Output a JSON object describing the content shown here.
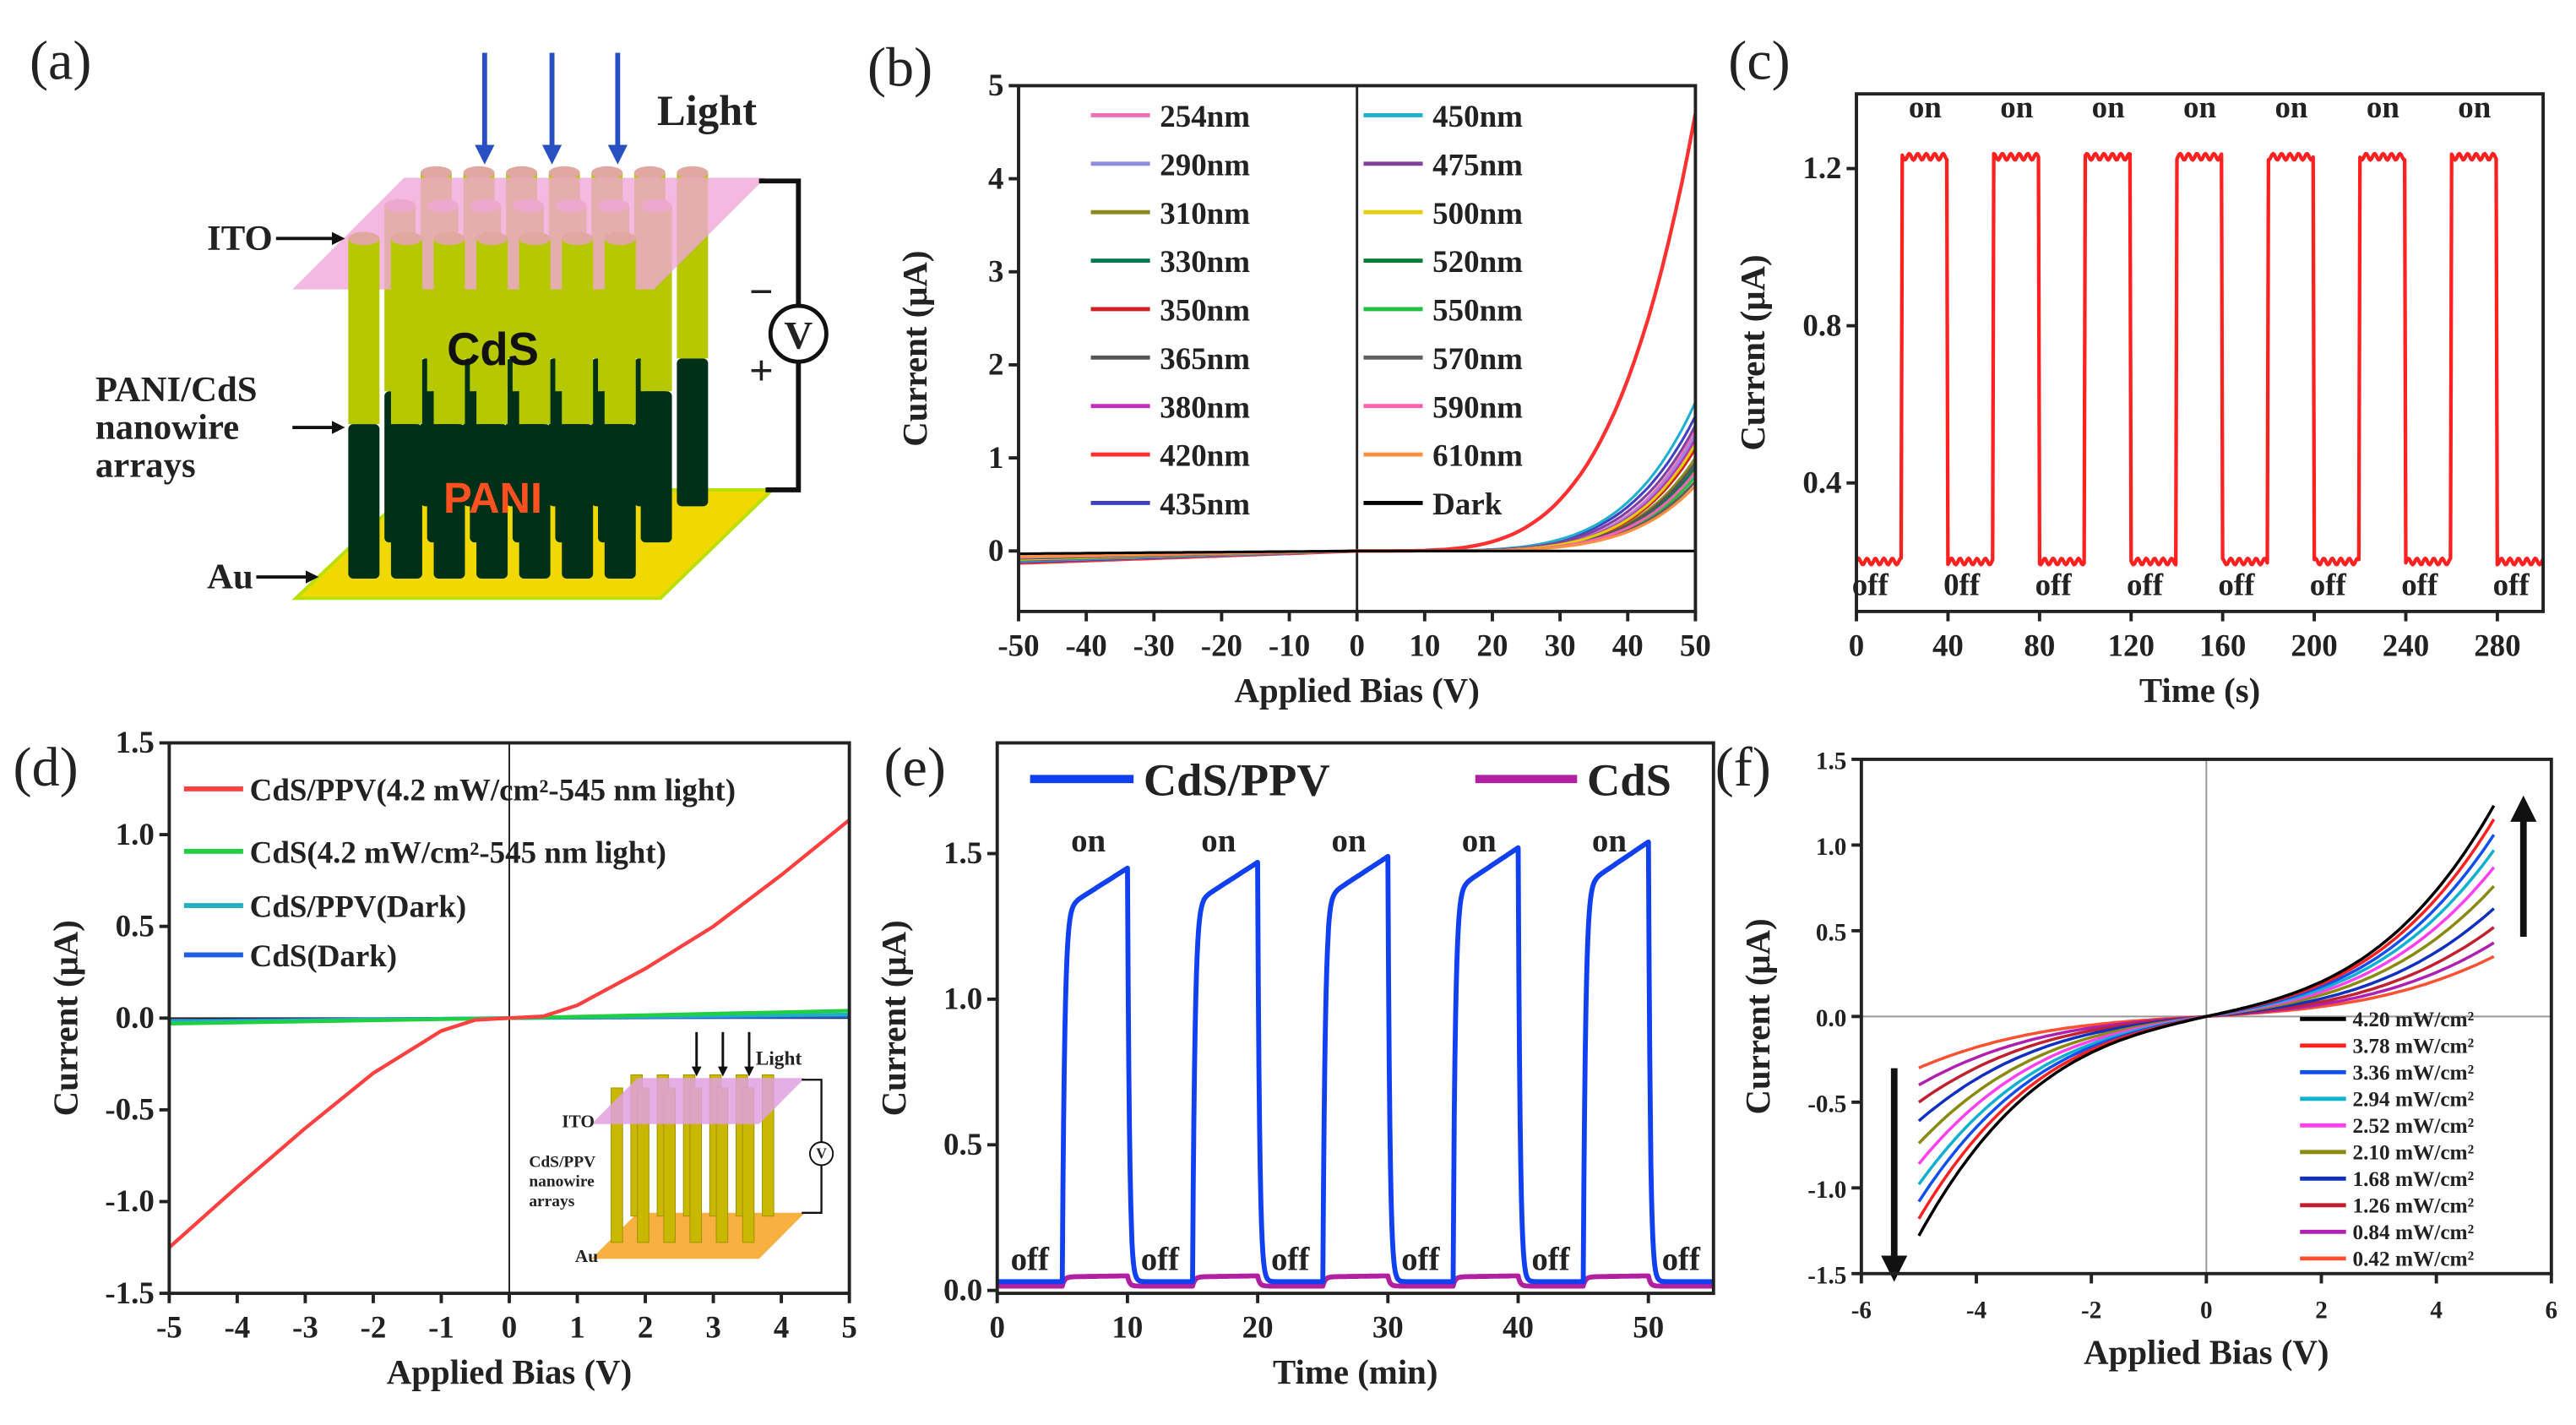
{
  "figure": {
    "panel_labels": [
      "(a)",
      "(b)",
      "(c)",
      "(d)",
      "(e)",
      "(f)"
    ]
  },
  "schematic_a": {
    "light": "Light",
    "ito": "ITO",
    "cds": "CdS",
    "pani": "PANI",
    "array_label": [
      "PANI/CdS",
      "nanowire",
      "arrays"
    ],
    "au": "Au",
    "voltmeter": "V",
    "minus": "−",
    "plus": "+",
    "colors": {
      "ito": "#f0a8d8",
      "cds": "#b5c800",
      "pani": "#003018",
      "au": "#f0d800",
      "arrow": "#2850c0"
    }
  },
  "inset_d": {
    "light": "Light",
    "ito": "ITO",
    "array_label": [
      "CdS/PPV",
      "nanowire",
      "arrays"
    ],
    "au": "Au",
    "voltmeter": "V"
  },
  "chart_data": [
    {
      "panel": "b",
      "type": "line",
      "xlabel": "Applied Bias (V)",
      "ylabel": "Current (μA)",
      "xlim": [
        -50,
        50
      ],
      "ylim": [
        -0.65,
        5
      ],
      "xticks": [
        -50,
        -40,
        -30,
        -20,
        -10,
        0,
        10,
        20,
        30,
        40,
        50
      ],
      "yticks": [
        0,
        1,
        2,
        3,
        4,
        5
      ],
      "legend_placement": "top-left, two columns",
      "series": [
        {
          "name": "254nm",
          "color": "#f070b8",
          "i_at_50V": 1.3,
          "i_at_minus50V": -0.1,
          "onset_power": 5.5
        },
        {
          "name": "290nm",
          "color": "#8c8ce0",
          "i_at_50V": 1.25,
          "i_at_minus50V": -0.1,
          "onset_power": 5.5
        },
        {
          "name": "310nm",
          "color": "#8a8a20",
          "i_at_50V": 1.0,
          "i_at_minus50V": -0.09,
          "onset_power": 5.5
        },
        {
          "name": "330nm",
          "color": "#007a50",
          "i_at_50V": 0.9,
          "i_at_minus50V": -0.08,
          "onset_power": 5.5
        },
        {
          "name": "350nm",
          "color": "#d02020",
          "i_at_50V": 1.1,
          "i_at_minus50V": -0.1,
          "onset_power": 5.5
        },
        {
          "name": "365nm",
          "color": "#555555",
          "i_at_50V": 0.95,
          "i_at_minus50V": -0.09,
          "onset_power": 5.5
        },
        {
          "name": "380nm",
          "color": "#c030c0",
          "i_at_50V": 1.2,
          "i_at_minus50V": -0.1,
          "onset_power": 5.5
        },
        {
          "name": "420nm",
          "color": "#ff3030",
          "i_at_50V": 4.7,
          "i_at_minus50V": -0.13,
          "onset_power": 4.2
        },
        {
          "name": "435nm",
          "color": "#4040c0",
          "i_at_50V": 1.45,
          "i_at_minus50V": -0.12,
          "onset_power": 5.0
        },
        {
          "name": "450nm",
          "color": "#20b0d0",
          "i_at_50V": 1.6,
          "i_at_minus50V": -0.11,
          "onset_power": 5.0
        },
        {
          "name": "475nm",
          "color": "#8040a0",
          "i_at_50V": 1.35,
          "i_at_minus50V": -0.1,
          "onset_power": 5.2
        },
        {
          "name": "500nm",
          "color": "#e0d000",
          "i_at_50V": 1.15,
          "i_at_minus50V": -0.09,
          "onset_power": 5.5
        },
        {
          "name": "520nm",
          "color": "#008030",
          "i_at_50V": 0.85,
          "i_at_minus50V": -0.08,
          "onset_power": 5.5
        },
        {
          "name": "550nm",
          "color": "#20c040",
          "i_at_50V": 0.8,
          "i_at_minus50V": -0.07,
          "onset_power": 5.5
        },
        {
          "name": "570nm",
          "color": "#606060",
          "i_at_50V": 0.75,
          "i_at_minus50V": -0.07,
          "onset_power": 5.5
        },
        {
          "name": "590nm",
          "color": "#ff60b0",
          "i_at_50V": 0.85,
          "i_at_minus50V": -0.07,
          "onset_power": 5.5
        },
        {
          "name": "610nm",
          "color": "#ff9040",
          "i_at_50V": 0.7,
          "i_at_minus50V": -0.06,
          "onset_power": 5.5
        },
        {
          "name": "Dark",
          "color": "#000000",
          "i_at_50V": 0.0,
          "i_at_minus50V": -0.03,
          "onset_power": 1
        }
      ]
    },
    {
      "panel": "c",
      "type": "line",
      "xlabel": "Time (s)",
      "ylabel": "Current (μA)",
      "xlim": [
        0,
        300
      ],
      "ylim": [
        0.073,
        1.39
      ],
      "xticks": [
        0,
        40,
        80,
        120,
        160,
        200,
        240,
        280
      ],
      "yticks": [
        0.4,
        0.8,
        1.2
      ],
      "series": [
        {
          "name": "photoresponse",
          "color": "#ff2020",
          "on_level": 1.23,
          "off_level": 0.2,
          "on_intervals": [
            [
              20,
              40
            ],
            [
              60,
              80
            ],
            [
              100,
              120
            ],
            [
              140,
              160
            ],
            [
              180,
              200
            ],
            [
              220,
              240
            ],
            [
              260,
              280
            ]
          ]
        }
      ],
      "annotations": {
        "on_labels": [
          "on",
          "on",
          "on",
          "on",
          "on",
          "on",
          "on"
        ],
        "off_labels": [
          "off",
          "0ff",
          "off",
          "off",
          "off",
          "off",
          "off",
          "off"
        ],
        "off_positions": [
          6,
          46,
          86,
          126,
          166,
          206,
          246,
          286
        ]
      }
    },
    {
      "panel": "d",
      "type": "line",
      "xlabel": "Applied Bias (V)",
      "ylabel": "Current (μA)",
      "xlim": [
        -5,
        5
      ],
      "ylim": [
        -1.5,
        1.5
      ],
      "xticks": [
        -5,
        -4,
        -3,
        -2,
        -1,
        0,
        1,
        2,
        3,
        4,
        5
      ],
      "yticks": [
        -1.5,
        -1.0,
        -0.5,
        0.0,
        0.5,
        1.0,
        1.5
      ],
      "legend_placement": "top-left",
      "series": [
        {
          "name": "CdS/PPV(4.2 mW/cm²-545 nm light)",
          "color": "#ff4040",
          "x": [
            -5,
            -4,
            -3,
            -2,
            -1,
            -0.5,
            0,
            0.5,
            1,
            2,
            3,
            4,
            5
          ],
          "y": [
            -1.25,
            -0.92,
            -0.6,
            -0.3,
            -0.07,
            -0.01,
            0,
            0.01,
            0.07,
            0.27,
            0.5,
            0.78,
            1.08
          ]
        },
        {
          "name": "CdS(4.2 mW/cm²-545 nm light)",
          "color": "#20d040",
          "x": [
            -5,
            0,
            5
          ],
          "y": [
            -0.03,
            0,
            0.04
          ]
        },
        {
          "name": "CdS/PPV(Dark)",
          "color": "#20b0c0",
          "x": [
            -5,
            0,
            5
          ],
          "y": [
            -0.02,
            0,
            0.02
          ]
        },
        {
          "name": "CdS(Dark)",
          "color": "#2060e0",
          "x": [
            -5,
            0,
            5
          ],
          "y": [
            -0.015,
            0,
            0.01
          ]
        }
      ]
    },
    {
      "panel": "e",
      "type": "line",
      "xlabel": "Time (min)",
      "ylabel": "Current (μA)",
      "xlim": [
        0,
        55
      ],
      "ylim": [
        -0.01,
        1.88
      ],
      "xticks": [
        0,
        10,
        20,
        30,
        40,
        50
      ],
      "yticks": [
        0.0,
        0.5,
        1.0,
        1.5
      ],
      "legend_placement": "top",
      "series": [
        {
          "name": "CdS/PPV",
          "color": "#1040f0",
          "off_level": 0.03,
          "on_intervals": [
            [
              5,
              10
            ],
            [
              15,
              20
            ],
            [
              25,
              30
            ],
            [
              35,
              40
            ],
            [
              45,
              50
            ]
          ],
          "peaks": [
            1.45,
            1.47,
            1.49,
            1.52,
            1.54
          ]
        },
        {
          "name": "CdS",
          "color": "#b020a0",
          "off_level": 0.015,
          "on_intervals": [
            [
              5,
              10
            ],
            [
              15,
              20
            ],
            [
              25,
              30
            ],
            [
              35,
              40
            ],
            [
              45,
              50
            ]
          ],
          "peaks": [
            0.05,
            0.05,
            0.05,
            0.05,
            0.05
          ]
        }
      ],
      "annotations": {
        "on_labels": [
          "on",
          "on",
          "on",
          "on",
          "on"
        ],
        "off_labels": [
          "off",
          "off",
          "off",
          "off",
          "off",
          "off"
        ],
        "off_positions": [
          2.5,
          12.5,
          22.5,
          32.5,
          42.5,
          52.5
        ],
        "label_color": "#ff2020"
      }
    },
    {
      "panel": "f",
      "type": "line",
      "xlabel": "Applied Bias (V)",
      "ylabel": "Current (μA)",
      "xlim": [
        -6,
        6
      ],
      "ylim": [
        -1.5,
        1.5
      ],
      "xticks": [
        -6,
        -4,
        -2,
        0,
        2,
        4,
        6
      ],
      "yticks": [
        -1.5,
        -1.0,
        -0.5,
        0.0,
        0.5,
        1.0,
        1.5
      ],
      "legend_placement": "bottom-right",
      "series": [
        {
          "name": "4.20 mW/cm²",
          "color": "#000000",
          "i_at_5V": 1.23,
          "i_at_minus5V": -1.28
        },
        {
          "name": "3.78 mW/cm²",
          "color": "#ff2020",
          "i_at_5V": 1.15,
          "i_at_minus5V": -1.18
        },
        {
          "name": "3.36 mW/cm²",
          "color": "#1050f0",
          "i_at_5V": 1.06,
          "i_at_minus5V": -1.08
        },
        {
          "name": "2.94 mW/cm²",
          "color": "#10b0d0",
          "i_at_5V": 0.97,
          "i_at_minus5V": -0.98
        },
        {
          "name": "2.52 mW/cm²",
          "color": "#ff40f0",
          "i_at_5V": 0.87,
          "i_at_minus5V": -0.86
        },
        {
          "name": "2.10 mW/cm²",
          "color": "#8a8a10",
          "i_at_5V": 0.76,
          "i_at_minus5V": -0.74
        },
        {
          "name": "1.68 mW/cm²",
          "color": "#1030c0",
          "i_at_5V": 0.63,
          "i_at_minus5V": -0.61
        },
        {
          "name": "1.26 mW/cm²",
          "color": "#c02030",
          "i_at_5V": 0.52,
          "i_at_minus5V": -0.5
        },
        {
          "name": "0.84 mW/cm²",
          "color": "#b020b0",
          "i_at_5V": 0.43,
          "i_at_minus5V": -0.4
        },
        {
          "name": "0.42 mW/cm²",
          "color": "#ff5030",
          "i_at_5V": 0.35,
          "i_at_minus5V": -0.3
        }
      ]
    }
  ]
}
